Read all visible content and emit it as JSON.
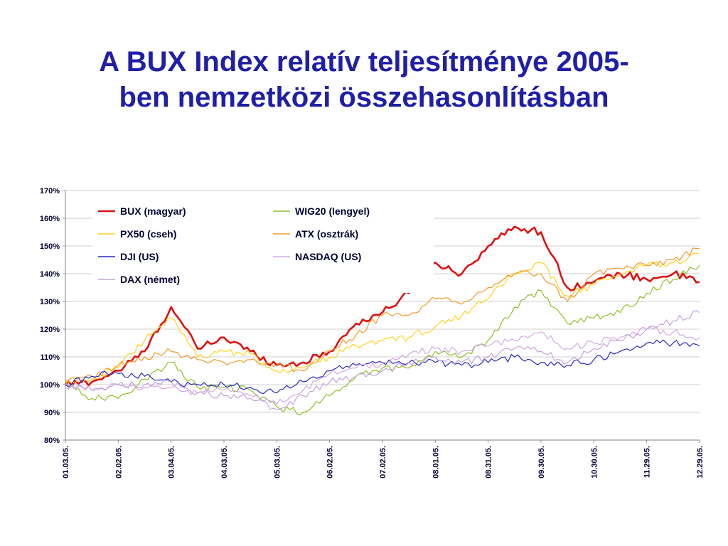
{
  "slide": {
    "title_line1": "A BUX Index relatív teljesítménye 2005-",
    "title_line2": "ben nemzetközi összehasonlításban"
  },
  "chart_data": {
    "type": "line",
    "title": "",
    "xlabel": "",
    "ylabel": "",
    "ylim": [
      80,
      170
    ],
    "y_ticks": [
      "80%",
      "90%",
      "100%",
      "110%",
      "120%",
      "130%",
      "140%",
      "150%",
      "160%",
      "170%"
    ],
    "y_tick_values": [
      80,
      90,
      100,
      110,
      120,
      130,
      140,
      150,
      160,
      170
    ],
    "x_ticks": [
      "01.03.05.",
      "02.02.05.",
      "03.04.05.",
      "04.03.05.",
      "05.03.05.",
      "06.02.05.",
      "07.02.05.",
      "08.01.05.",
      "08.31.05.",
      "09.30.05.",
      "10.30.05.",
      "11.29.05.",
      "12.29.05."
    ],
    "grid": "horizontal",
    "legend_position": "top-left",
    "x": [
      "01.03.05.",
      "01.17.05.",
      "02.02.05.",
      "02.17.05.",
      "03.04.05.",
      "03.18.05.",
      "04.03.05.",
      "04.18.05.",
      "05.03.05.",
      "05.18.05.",
      "06.02.05.",
      "06.17.05.",
      "07.02.05.",
      "07.17.05.",
      "08.01.05.",
      "08.16.05.",
      "08.31.05.",
      "09.15.05.",
      "09.30.05.",
      "10.15.05.",
      "10.30.05.",
      "11.14.05.",
      "11.29.05.",
      "12.14.05.",
      "12.29.05."
    ],
    "series": [
      {
        "name": "BUX (magyar)",
        "color": "#e01010",
        "width": 2.6,
        "values": [
          100,
          101,
          105,
          112,
          128,
          113,
          117,
          112,
          107,
          108,
          112,
          122,
          126,
          133,
          144,
          140,
          150,
          157,
          155,
          135,
          137,
          140,
          138,
          140,
          137
        ]
      },
      {
        "name": "WIG20 (lengyel)",
        "color": "#8fbf26",
        "width": 1.2,
        "values": [
          101,
          95,
          95,
          102,
          108,
          99,
          99,
          98,
          92,
          90,
          96,
          103,
          106,
          106,
          112,
          110,
          116,
          128,
          134,
          122,
          124,
          126,
          133,
          138,
          143
        ]
      },
      {
        "name": "PX50 (cseh)",
        "color": "#ffd21a",
        "width": 1.2,
        "values": [
          101,
          102,
          106,
          116,
          124,
          110,
          112,
          111,
          105,
          106,
          110,
          114,
          116,
          117,
          121,
          125,
          131,
          140,
          144,
          132,
          136,
          140,
          143,
          144,
          147
        ]
      },
      {
        "name": "ATX (osztrák)",
        "color": "#f19a2a",
        "width": 1.2,
        "values": [
          101,
          103,
          107,
          110,
          112,
          109,
          108,
          109,
          107,
          105,
          112,
          118,
          125,
          125,
          131,
          129,
          135,
          140,
          140,
          130,
          140,
          142,
          143,
          145,
          149
        ]
      },
      {
        "name": "DJI (US)",
        "color": "#2929c8",
        "width": 1.2,
        "values": [
          100,
          103,
          104,
          103,
          101,
          100,
          100,
          99,
          97,
          101,
          105,
          107,
          108,
          108,
          108,
          107,
          108,
          110,
          108,
          107,
          109,
          112,
          115,
          115,
          114
        ]
      },
      {
        "name": "NASDAQ (US)",
        "color": "#d3a8e8",
        "width": 1.2,
        "values": [
          99,
          98,
          100,
          99,
          99,
          97,
          98,
          96,
          93,
          98,
          104,
          106,
          108,
          111,
          113,
          112,
          114,
          116,
          119,
          113,
          115,
          117,
          120,
          119,
          117
        ]
      },
      {
        "name": "DAX (német)",
        "color": "#c8a0e0",
        "width": 1.2,
        "values": [
          100,
          98,
          100,
          100,
          101,
          97,
          96,
          95,
          91,
          96,
          101,
          103,
          105,
          108,
          110,
          108,
          110,
          113,
          112,
          108,
          113,
          116,
          120,
          123,
          126
        ]
      }
    ]
  }
}
